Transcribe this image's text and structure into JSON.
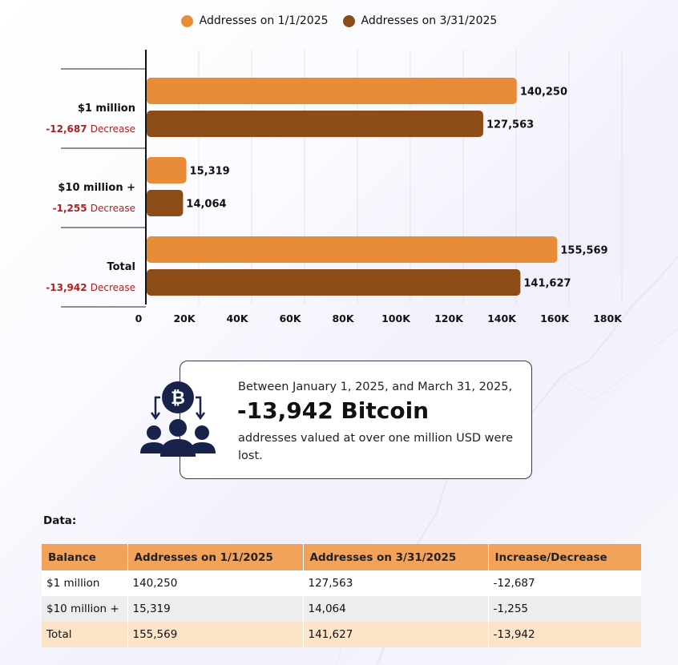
{
  "colors": {
    "series1": "#e88c38",
    "series2": "#8b4c17",
    "decrease": "#b01f1f",
    "icon": "#17234a"
  },
  "chart_data": {
    "type": "bar",
    "orientation": "horizontal",
    "categories": [
      "$1 million",
      "$10 million +",
      "Total"
    ],
    "category_changes": [
      {
        "value": "-12,687",
        "word": "Decrease"
      },
      {
        "value": "-1,255",
        "word": "Decrease"
      },
      {
        "value": "-13,942",
        "word": "Decrease"
      }
    ],
    "series": [
      {
        "name": "Addresses on 1/1/2025",
        "values": [
          140250,
          15319,
          155569
        ],
        "labels": [
          "140,250",
          "15,319",
          "155,569"
        ]
      },
      {
        "name": "Addresses on 3/31/2025",
        "values": [
          127563,
          14064,
          141627
        ],
        "labels": [
          "127,563",
          "14,064",
          "141,627"
        ]
      }
    ],
    "xlim": [
      0,
      180000
    ],
    "ticks": [
      0,
      20000,
      40000,
      60000,
      80000,
      100000,
      120000,
      140000,
      160000,
      180000
    ],
    "tick_labels": [
      "0",
      "20K",
      "40K",
      "60K",
      "80K",
      "100K",
      "120K",
      "140K",
      "160K",
      "180K"
    ],
    "legend_position": "top-center",
    "grid": true
  },
  "callout": {
    "icon": "bitcoin-people-icon",
    "line1": "Between January 1, 2025, and March 31, 2025,",
    "headline": "-13,942 Bitcoin",
    "line3": "addresses valued at over one million USD were lost."
  },
  "table": {
    "heading": "Data:",
    "headers": [
      "Balance",
      "Addresses on 1/1/2025",
      "Addresses on 3/31/2025",
      "Increase/Decrease"
    ],
    "rows": [
      [
        "$1 million",
        "140,250",
        "127,563",
        "-12,687"
      ],
      [
        "$10 million +",
        "15,319",
        "14,064",
        "-1,255"
      ],
      [
        "Total",
        "155,569",
        "141,627",
        "-13,942"
      ]
    ]
  }
}
